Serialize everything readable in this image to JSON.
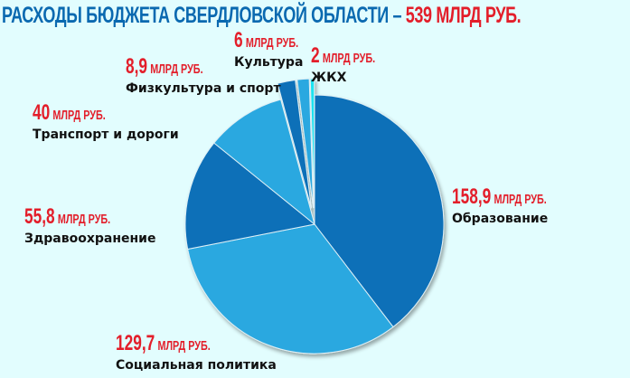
{
  "header": {
    "title_main": "РАСХОДЫ БЮДЖЕТА СВЕРДЛОВСКОЙ ОБЛАСТИ – ",
    "title_total": "539 МЛРД РУБ."
  },
  "colors": {
    "background": "#e2fdfe",
    "title": "#0a69b0",
    "value": "#e31e2a",
    "dark_blue": "#0a6fb8",
    "light_blue": "#29a8e0",
    "cyan": "#1ee3f0"
  },
  "unit": "МЛРД РУБ.",
  "chart_data": {
    "type": "pie",
    "title": "Расходы бюджета Свердловской области – 539 млрд руб.",
    "unit": "млрд руб.",
    "total_stated": 539,
    "categories": [
      "Образование",
      "Социальная политика",
      "Здравоохранение",
      "Транспорт и дороги",
      "Физкультура и спорт",
      "Культура",
      "ЖКХ"
    ],
    "values": [
      158.9,
      129.7,
      55.8,
      40,
      8.9,
      6,
      2
    ],
    "value_labels": [
      "158,9",
      "129,7",
      "55,8",
      "40",
      "8,9",
      "6",
      "2"
    ],
    "colors": [
      "#0a6fb8",
      "#29a8e0",
      "#0a6fb8",
      "#29a8e0",
      "#0a6fb8",
      "#29a8e0",
      "#1ee3f0"
    ],
    "exploded": [
      false,
      false,
      false,
      false,
      true,
      true,
      true
    ],
    "start_angle": "top, clockwise",
    "legend": "none (labels placed around pie)"
  }
}
